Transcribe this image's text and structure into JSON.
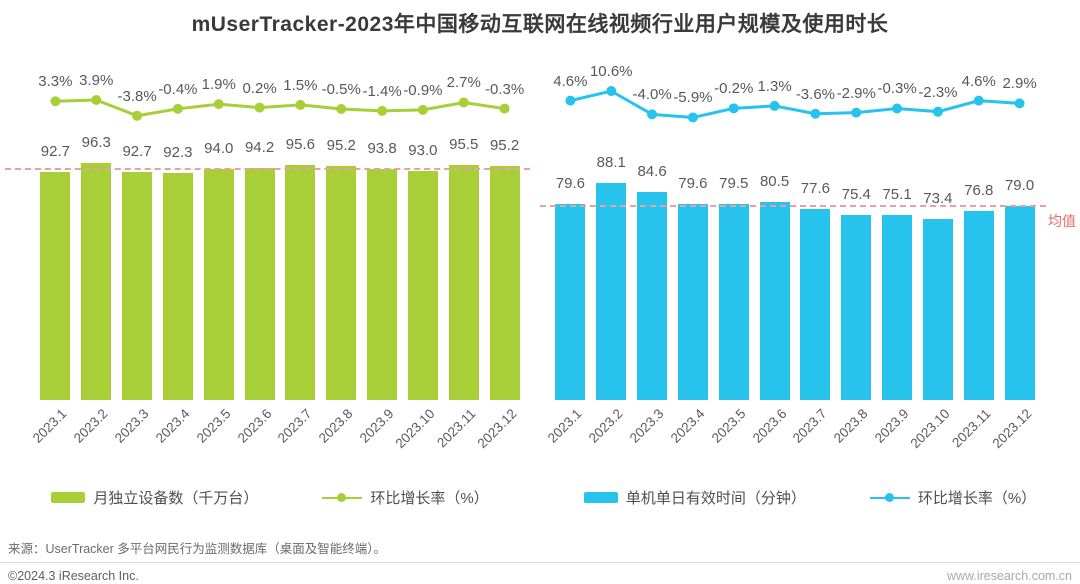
{
  "title": "mUserTracker-2023年中国移动互联网在线视频行业用户规模及使用时长",
  "mean_label": "均值",
  "colors": {
    "green": "#a8ce38",
    "blue": "#27c3ed",
    "mean_line": "#eaa0a0",
    "mean_text": "#e06c6c"
  },
  "chart_data": [
    {
      "type": "bar",
      "title": "月独立设备数及环比增长率",
      "categories": [
        "2023.1",
        "2023.2",
        "2023.3",
        "2023.4",
        "2023.5",
        "2023.6",
        "2023.7",
        "2023.8",
        "2023.9",
        "2023.10",
        "2023.11",
        "2023.12"
      ],
      "series": [
        {
          "name": "月独立设备数（千万台）",
          "type": "bar",
          "color": "#a8ce38",
          "values": [
            92.7,
            96.3,
            92.7,
            92.3,
            94.0,
            94.2,
            95.6,
            95.2,
            93.8,
            93.0,
            95.5,
            95.2
          ]
        },
        {
          "name": "环比增长率（%）",
          "type": "line",
          "color": "#a8ce38",
          "values": [
            3.3,
            3.9,
            -3.8,
            -0.4,
            1.9,
            0.2,
            1.5,
            -0.5,
            -1.4,
            -0.9,
            2.7,
            -0.3
          ]
        }
      ],
      "mean": 94.2,
      "grid": false,
      "legend_position": "bottom"
    },
    {
      "type": "bar",
      "title": "单机单日有效时间及环比增长率",
      "categories": [
        "2023.1",
        "2023.2",
        "2023.3",
        "2023.4",
        "2023.5",
        "2023.6",
        "2023.7",
        "2023.8",
        "2023.9",
        "2023.10",
        "2023.11",
        "2023.12"
      ],
      "series": [
        {
          "name": "单机单日有效时间（分钟）",
          "type": "bar",
          "color": "#27c3ed",
          "values": [
            79.6,
            88.1,
            84.6,
            79.6,
            79.5,
            80.5,
            77.6,
            75.4,
            75.1,
            73.4,
            76.8,
            79.0
          ]
        },
        {
          "name": "环比增长率（%）",
          "type": "line",
          "color": "#27c3ed",
          "values": [
            4.6,
            10.6,
            -4.0,
            -5.9,
            -0.2,
            1.3,
            -3.6,
            -2.9,
            -0.3,
            -2.3,
            4.6,
            2.9
          ]
        }
      ],
      "mean": 79.1,
      "grid": false,
      "legend_position": "bottom"
    }
  ],
  "footer": {
    "source": "来源：UserTracker 多平台网民行为监测数据库（桌面及智能终端）。",
    "copyright": "©2024.3 iResearch Inc.",
    "website": "www.iresearch.com.cn"
  }
}
